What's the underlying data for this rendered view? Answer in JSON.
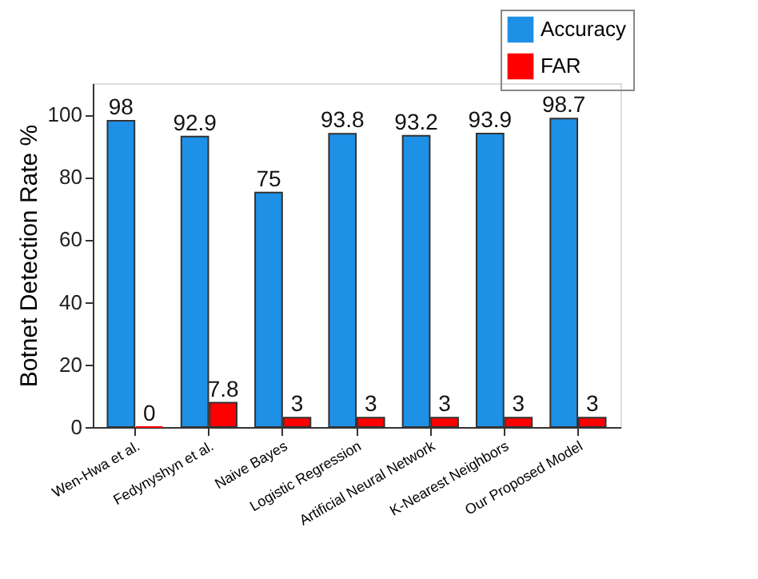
{
  "chart_data": {
    "type": "bar",
    "ylabel": "Botnet Detection Rate %",
    "categories": [
      "Wen-Hwa et al.",
      "Fedynyshyn et al.",
      "Naive Bayes",
      "Logistic Regression",
      "Artificial Neural Network",
      "K-Nearest Neighbors",
      "Our Proposed Model"
    ],
    "series": [
      {
        "name": "Accuracy",
        "color": "#1e90e6",
        "values": [
          98,
          92.9,
          75,
          93.8,
          93.2,
          93.9,
          98.7
        ]
      },
      {
        "name": "FAR",
        "color": "#ff0000",
        "values": [
          0,
          7.8,
          3,
          3,
          3,
          3,
          3
        ]
      }
    ],
    "ylim": [
      0,
      110
    ],
    "yticks": [
      0,
      20,
      40,
      60,
      80,
      100
    ],
    "data_labels": true,
    "legend": "top right",
    "grid": false
  }
}
